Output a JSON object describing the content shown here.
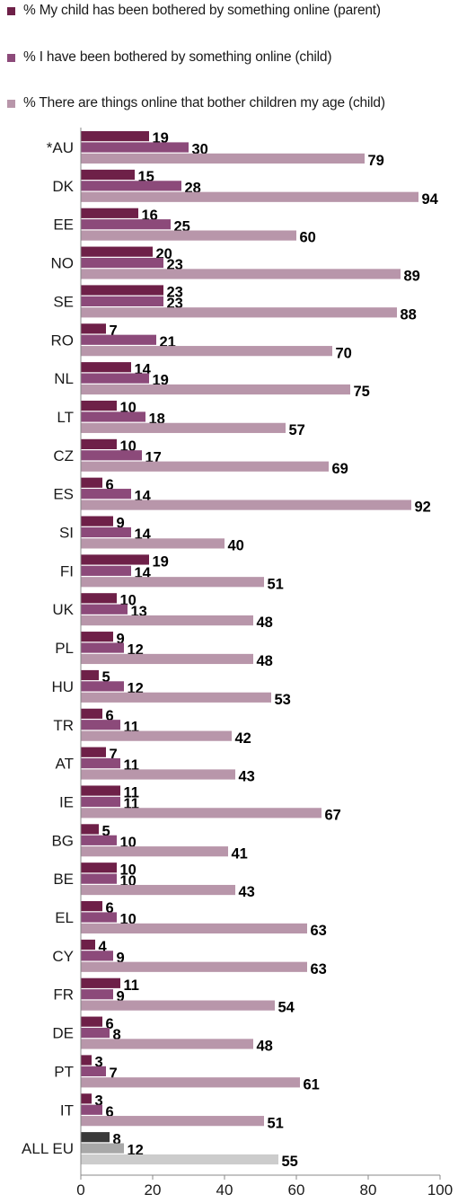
{
  "chart_data": {
    "type": "bar",
    "orientation": "horizontal",
    "categories": [
      "*AU",
      "DK",
      "EE",
      "NO",
      "SE",
      "RO",
      "NL",
      "LT",
      "CZ",
      "ES",
      "SI",
      "FI",
      "UK",
      "PL",
      "HU",
      "TR",
      "AT",
      "IE",
      "BG",
      "BE",
      "EL",
      "CY",
      "FR",
      "DE",
      "PT",
      "IT",
      "ALL EU"
    ],
    "series": [
      {
        "name": "% My child has been bothered by something online (parent)",
        "color": "#6e2048",
        "values": [
          19,
          15,
          16,
          20,
          23,
          7,
          14,
          10,
          10,
          6,
          9,
          19,
          10,
          9,
          5,
          6,
          7,
          11,
          5,
          10,
          6,
          4,
          11,
          6,
          3,
          3,
          8
        ]
      },
      {
        "name": "% I have been bothered by something online (child)",
        "color": "#8c4a7a",
        "values": [
          30,
          28,
          25,
          23,
          23,
          21,
          19,
          18,
          17,
          14,
          14,
          14,
          13,
          12,
          12,
          11,
          11,
          11,
          10,
          10,
          10,
          9,
          9,
          8,
          7,
          6,
          12
        ]
      },
      {
        "name": "% There are things online that bother children my age (child)",
        "color": "#b896aa",
        "values": [
          79,
          94,
          60,
          89,
          88,
          70,
          75,
          57,
          69,
          92,
          40,
          51,
          48,
          48,
          53,
          42,
          43,
          67,
          41,
          43,
          63,
          63,
          54,
          48,
          61,
          51,
          55
        ]
      }
    ],
    "highlight_category": "ALL EU",
    "highlight_colors": [
      "#3a3a3a",
      "#a8a8a8",
      "#cccccc"
    ],
    "xlim": [
      0,
      100
    ],
    "xticks": [
      0,
      20,
      40,
      60,
      80,
      100
    ],
    "grid": false,
    "legend_position": "top"
  }
}
